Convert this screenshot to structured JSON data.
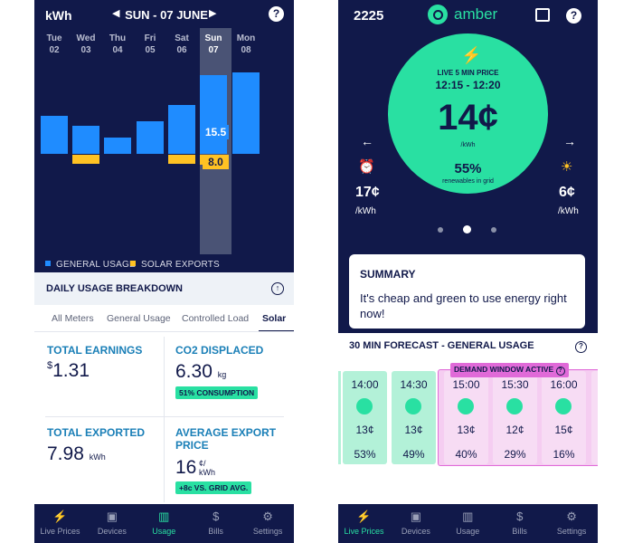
{
  "usage_screen": {
    "unit": "kWh",
    "date_label": "SUN - 07 JUNE",
    "prev_arrow": "◀",
    "next_arrow": "▶",
    "help_icon": "?",
    "days": [
      {
        "dow": "Tue",
        "num": "02",
        "general": 7.5,
        "solar": 0
      },
      {
        "dow": "Wed",
        "num": "03",
        "general": 5.5,
        "solar": 1.9
      },
      {
        "dow": "Thu",
        "num": "04",
        "general": 3.2,
        "solar": 0
      },
      {
        "dow": "Fri",
        "num": "05",
        "general": 6.5,
        "solar": 0
      },
      {
        "dow": "Sat",
        "num": "06",
        "general": 9.7,
        "solar": 2.0
      },
      {
        "dow": "Sun",
        "num": "07",
        "general": 15.5,
        "solar": 8.0,
        "selected": true
      },
      {
        "dow": "Mon",
        "num": "08",
        "general": 16.0,
        "solar": 0
      }
    ],
    "selected_general_label": "15.5",
    "selected_solar_label": "8.0",
    "legend_general": "GENERAL USAGE",
    "legend_solar": "SOLAR EXPORTS",
    "colors": {
      "general": "#1f8cff",
      "solar": "#ffc223",
      "accent": "#29e0a2",
      "navy": "#11194a"
    },
    "breakdown_title": "DAILY USAGE BREAKDOWN",
    "breakdown_icon": "↑",
    "tabs": [
      "All Meters",
      "General Usage",
      "Controlled Load",
      "Solar"
    ],
    "active_tab": "Solar",
    "stats": {
      "earnings_title": "TOTAL EARNINGS",
      "earnings_currency": "$",
      "earnings_value": "1.31",
      "co2_title": "CO2 DISPLACED",
      "co2_value": "6.30",
      "co2_unit": "kg",
      "co2_pill": "51% CONSUMPTION",
      "exported_title": "TOTAL EXPORTED",
      "exported_value": "7.98",
      "exported_unit": "kWh",
      "avg_title": "AVERAGE EXPORT PRICE",
      "avg_value": "16",
      "avg_unit_top": "¢/",
      "avg_unit_bottom": "kWh",
      "avg_pill": "+8c VS. GRID AVG."
    }
  },
  "live_screen": {
    "account_id": "2225",
    "brand": "amber",
    "live_label": "LIVE 5 MIN PRICE",
    "time_range": "12:15 - 12:20",
    "price": "14¢",
    "price_unit": "/kWh",
    "renewables": "55%",
    "renewables_label": "renewables in grid",
    "left_price": "17¢",
    "left_unit": "/kWh",
    "right_price": "6¢",
    "right_unit": "/kWh",
    "summary_title": "SUMMARY",
    "summary_body": "It's cheap and green to use energy right now!",
    "forecast_title": "30 MIN FORECAST - GENERAL USAGE",
    "forecast_help": "?",
    "demand_label": "DEMAND WINDOW ACTIVE",
    "forecast": [
      {
        "time": "14:00",
        "price": "13¢",
        "renew": "53%",
        "demand": false
      },
      {
        "time": "14:30",
        "price": "13¢",
        "renew": "49%",
        "demand": false
      },
      {
        "time": "15:00",
        "price": "13¢",
        "renew": "40%",
        "demand": true
      },
      {
        "time": "15:30",
        "price": "12¢",
        "renew": "29%",
        "demand": true
      },
      {
        "time": "16:00",
        "price": "15¢",
        "renew": "16%",
        "demand": true
      }
    ]
  },
  "nav_left": [
    {
      "label": "Live Prices",
      "icon": "⚡",
      "active": false
    },
    {
      "label": "Devices",
      "icon": "▣",
      "active": false
    },
    {
      "label": "Usage",
      "icon": "▥",
      "active": true
    },
    {
      "label": "Bills",
      "icon": "$",
      "active": false
    },
    {
      "label": "Settings",
      "icon": "⚙",
      "active": false
    }
  ],
  "nav_right": [
    {
      "label": "Live Prices",
      "icon": "⚡",
      "active": true
    },
    {
      "label": "Devices",
      "icon": "▣",
      "active": false
    },
    {
      "label": "Usage",
      "icon": "▥",
      "active": false
    },
    {
      "label": "Bills",
      "icon": "$",
      "active": false
    },
    {
      "label": "Settings",
      "icon": "⚙",
      "active": false
    }
  ]
}
